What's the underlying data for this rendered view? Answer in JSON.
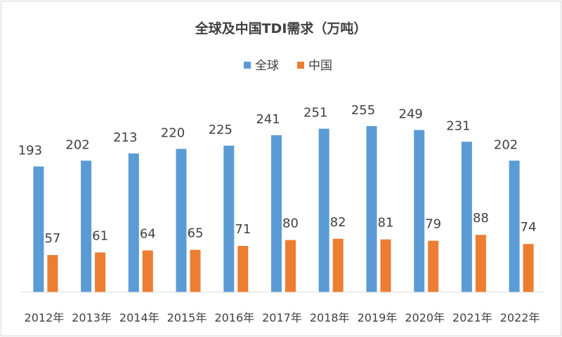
{
  "chart_data": {
    "type": "bar",
    "title": "全球及中国TDI需求（万吨）",
    "categories": [
      "2012年",
      "2013年",
      "2014年",
      "2015年",
      "2016年",
      "2017年",
      "2018年",
      "2019年",
      "2020年",
      "2021年",
      "2022年"
    ],
    "series": [
      {
        "name": "全球",
        "color": "#5b9bd5",
        "values": [
          193,
          202,
          213,
          220,
          225,
          241,
          251,
          255,
          249,
          231,
          202
        ]
      },
      {
        "name": "中国",
        "color": "#ed7d31",
        "values": [
          57,
          61,
          64,
          65,
          71,
          80,
          82,
          81,
          79,
          88,
          74
        ]
      }
    ],
    "ylim": [
      0,
      255
    ],
    "legend_position": "top-center",
    "grid": false,
    "data_labels": true
  }
}
